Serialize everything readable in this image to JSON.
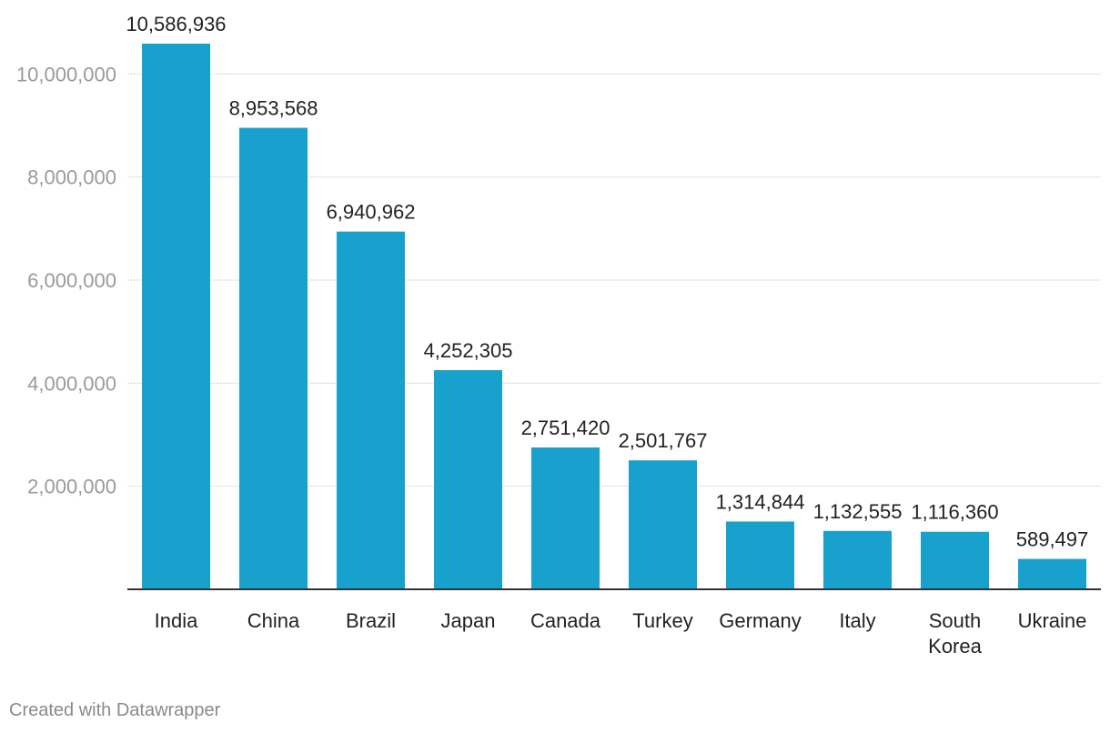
{
  "footer": {
    "credit": "Created with Datawrapper"
  },
  "colors": {
    "bar": "#18a1cd",
    "grid": "#e2e2e2",
    "axis": "#333333",
    "ytick": "#9a9a9a",
    "label": "#222222"
  },
  "chart_data": {
    "type": "bar",
    "title": "",
    "xlabel": "",
    "ylabel": "",
    "categories": [
      "India",
      "China",
      "Brazil",
      "Japan",
      "Canada",
      "Turkey",
      "Germany",
      "Italy",
      "South Korea",
      "Ukraine"
    ],
    "category_lines": [
      [
        "India"
      ],
      [
        "China"
      ],
      [
        "Brazil"
      ],
      [
        "Japan"
      ],
      [
        "Canada"
      ],
      [
        "Turkey"
      ],
      [
        "Germany"
      ],
      [
        "Italy"
      ],
      [
        "South",
        "Korea"
      ],
      [
        "Ukraine"
      ]
    ],
    "values": [
      10586936,
      8953568,
      6940962,
      4252305,
      2751420,
      2501767,
      1314844,
      1132555,
      1116360,
      589497
    ],
    "value_labels": [
      "10,586,936",
      "8,953,568",
      "6,940,962",
      "4,252,305",
      "2,751,420",
      "2,501,767",
      "1,314,844",
      "1,132,555",
      "1,116,360",
      "589,497"
    ],
    "yticks": [
      2000000,
      4000000,
      6000000,
      8000000,
      10000000
    ],
    "ytick_labels": [
      "2,000,000",
      "4,000,000",
      "6,000,000",
      "8,000,000",
      "10,000,000"
    ],
    "ylim": [
      0,
      10586936
    ],
    "grid": true
  }
}
